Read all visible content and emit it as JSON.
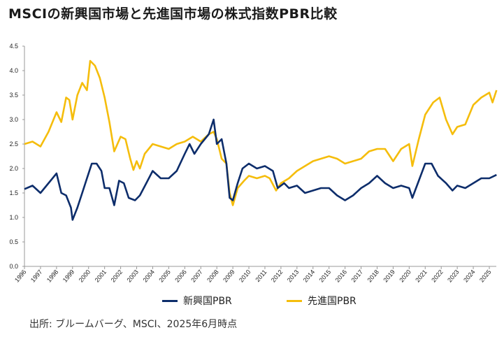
{
  "chart_data": {
    "type": "line",
    "title": "MSCIの新興国市場と先進国市場の株式指数PBR比較",
    "xlabel": "",
    "ylabel": "",
    "ylim": [
      0,
      4.5
    ],
    "xlim": [
      1996,
      2025.5
    ],
    "yticks": [
      "0.0",
      "0.5",
      "1.0",
      "1.5",
      "2.0",
      "2.5",
      "3.0",
      "3.5",
      "4.0",
      "4.5"
    ],
    "xticks": [
      "1996",
      "1997",
      "1998",
      "1999",
      "2000",
      "2001",
      "2002",
      "2003",
      "2004",
      "2005",
      "2006",
      "2007",
      "2008",
      "2009",
      "2010",
      "2011",
      "2012",
      "2013",
      "2014",
      "2015",
      "2016",
      "2017",
      "2018",
      "2019",
      "2020",
      "2021",
      "2022",
      "2023",
      "2024",
      "2025"
    ],
    "grid": false,
    "legend_position": "bottom",
    "series": [
      {
        "name": "新興国PBR",
        "color": "#0d2d6b",
        "points": [
          [
            1996,
            1.58
          ],
          [
            1996.5,
            1.65
          ],
          [
            1997,
            1.5
          ],
          [
            1997.5,
            1.7
          ],
          [
            1998,
            1.9
          ],
          [
            1998.3,
            1.5
          ],
          [
            1998.6,
            1.45
          ],
          [
            1998.9,
            1.2
          ],
          [
            1999,
            0.95
          ],
          [
            1999.3,
            1.2
          ],
          [
            1999.6,
            1.5
          ],
          [
            1999.9,
            1.8
          ],
          [
            2000.2,
            2.1
          ],
          [
            2000.5,
            2.1
          ],
          [
            2000.8,
            1.95
          ],
          [
            2001,
            1.6
          ],
          [
            2001.3,
            1.6
          ],
          [
            2001.6,
            1.25
          ],
          [
            2001.9,
            1.75
          ],
          [
            2002.2,
            1.7
          ],
          [
            2002.5,
            1.4
          ],
          [
            2002.9,
            1.35
          ],
          [
            2003.2,
            1.45
          ],
          [
            2003.6,
            1.7
          ],
          [
            2004,
            1.95
          ],
          [
            2004.5,
            1.8
          ],
          [
            2005,
            1.8
          ],
          [
            2005.5,
            1.95
          ],
          [
            2006,
            2.3
          ],
          [
            2006.3,
            2.5
          ],
          [
            2006.6,
            2.3
          ],
          [
            2007,
            2.5
          ],
          [
            2007.5,
            2.7
          ],
          [
            2007.8,
            3.0
          ],
          [
            2008,
            2.5
          ],
          [
            2008.3,
            2.6
          ],
          [
            2008.6,
            2.1
          ],
          [
            2008.8,
            1.4
          ],
          [
            2009,
            1.35
          ],
          [
            2009.3,
            1.7
          ],
          [
            2009.6,
            2.0
          ],
          [
            2010,
            2.1
          ],
          [
            2010.5,
            2.0
          ],
          [
            2011,
            2.05
          ],
          [
            2011.5,
            1.95
          ],
          [
            2011.8,
            1.6
          ],
          [
            2012.2,
            1.7
          ],
          [
            2012.5,
            1.6
          ],
          [
            2013,
            1.65
          ],
          [
            2013.5,
            1.5
          ],
          [
            2014,
            1.55
          ],
          [
            2014.5,
            1.6
          ],
          [
            2015,
            1.6
          ],
          [
            2015.5,
            1.45
          ],
          [
            2016,
            1.35
          ],
          [
            2016.5,
            1.45
          ],
          [
            2017,
            1.6
          ],
          [
            2017.5,
            1.7
          ],
          [
            2018,
            1.85
          ],
          [
            2018.5,
            1.7
          ],
          [
            2019,
            1.6
          ],
          [
            2019.5,
            1.65
          ],
          [
            2020,
            1.6
          ],
          [
            2020.2,
            1.4
          ],
          [
            2020.6,
            1.75
          ],
          [
            2021,
            2.1
          ],
          [
            2021.4,
            2.1
          ],
          [
            2021.8,
            1.85
          ],
          [
            2022.3,
            1.7
          ],
          [
            2022.7,
            1.55
          ],
          [
            2023,
            1.65
          ],
          [
            2023.5,
            1.6
          ],
          [
            2024,
            1.7
          ],
          [
            2024.5,
            1.8
          ],
          [
            2025,
            1.8
          ],
          [
            2025.45,
            1.87
          ]
        ]
      },
      {
        "name": "先進国PBR",
        "color": "#f5bd0c",
        "points": [
          [
            1996,
            2.5
          ],
          [
            1996.5,
            2.55
          ],
          [
            1997,
            2.45
          ],
          [
            1997.5,
            2.75
          ],
          [
            1998,
            3.15
          ],
          [
            1998.3,
            2.95
          ],
          [
            1998.6,
            3.45
          ],
          [
            1998.8,
            3.4
          ],
          [
            1999,
            3.0
          ],
          [
            1999.3,
            3.5
          ],
          [
            1999.6,
            3.75
          ],
          [
            1999.9,
            3.6
          ],
          [
            2000.1,
            4.2
          ],
          [
            2000.4,
            4.1
          ],
          [
            2000.7,
            3.85
          ],
          [
            2001,
            3.45
          ],
          [
            2001.3,
            2.95
          ],
          [
            2001.6,
            2.35
          ],
          [
            2002,
            2.65
          ],
          [
            2002.3,
            2.6
          ],
          [
            2002.6,
            2.2
          ],
          [
            2002.8,
            1.97
          ],
          [
            2003,
            2.15
          ],
          [
            2003.2,
            2.0
          ],
          [
            2003.5,
            2.3
          ],
          [
            2004,
            2.5
          ],
          [
            2004.5,
            2.45
          ],
          [
            2005,
            2.4
          ],
          [
            2005.5,
            2.5
          ],
          [
            2006,
            2.55
          ],
          [
            2006.5,
            2.65
          ],
          [
            2007,
            2.55
          ],
          [
            2007.5,
            2.7
          ],
          [
            2007.8,
            2.75
          ],
          [
            2008,
            2.6
          ],
          [
            2008.3,
            2.2
          ],
          [
            2008.6,
            2.1
          ],
          [
            2008.8,
            1.5
          ],
          [
            2009,
            1.25
          ],
          [
            2009.3,
            1.6
          ],
          [
            2009.7,
            1.75
          ],
          [
            2010,
            1.85
          ],
          [
            2010.5,
            1.8
          ],
          [
            2011,
            1.85
          ],
          [
            2011.3,
            1.8
          ],
          [
            2011.7,
            1.55
          ],
          [
            2012,
            1.7
          ],
          [
            2012.5,
            1.8
          ],
          [
            2013,
            1.95
          ],
          [
            2013.5,
            2.05
          ],
          [
            2014,
            2.15
          ],
          [
            2014.5,
            2.2
          ],
          [
            2015,
            2.25
          ],
          [
            2015.5,
            2.2
          ],
          [
            2016,
            2.1
          ],
          [
            2016.5,
            2.15
          ],
          [
            2017,
            2.2
          ],
          [
            2017.5,
            2.35
          ],
          [
            2018,
            2.4
          ],
          [
            2018.5,
            2.4
          ],
          [
            2019,
            2.15
          ],
          [
            2019.5,
            2.4
          ],
          [
            2020,
            2.5
          ],
          [
            2020.2,
            2.05
          ],
          [
            2020.6,
            2.6
          ],
          [
            2021,
            3.1
          ],
          [
            2021.5,
            3.35
          ],
          [
            2021.9,
            3.45
          ],
          [
            2022.3,
            3.0
          ],
          [
            2022.7,
            2.7
          ],
          [
            2023,
            2.85
          ],
          [
            2023.5,
            2.9
          ],
          [
            2024,
            3.3
          ],
          [
            2024.5,
            3.45
          ],
          [
            2025,
            3.55
          ],
          [
            2025.2,
            3.35
          ],
          [
            2025.45,
            3.6
          ]
        ]
      }
    ]
  },
  "source": "出所: ブルームバーグ、MSCI、2025年6月時点"
}
